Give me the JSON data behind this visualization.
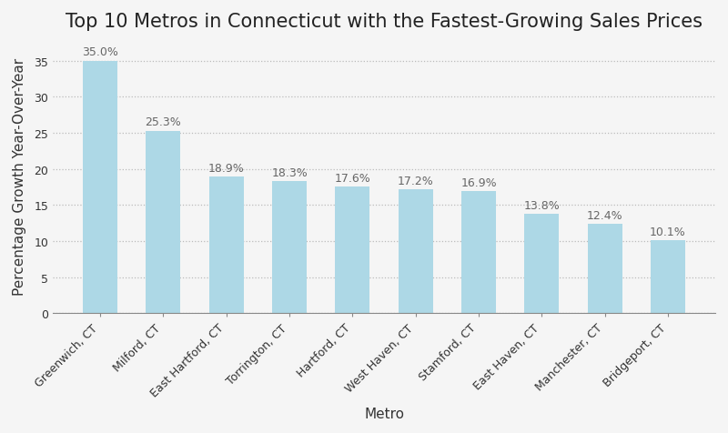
{
  "title": "Top 10 Metros in Connecticut with the Fastest-Growing Sales Prices",
  "xlabel": "Metro",
  "ylabel": "Percentage Growth Year-Over-Year",
  "categories": [
    "Greenwich, CT",
    "Milford, CT",
    "East Hartford, CT",
    "Torrington, CT",
    "Hartford, CT",
    "West Haven, CT",
    "Stamford, CT",
    "East Haven, CT",
    "Manchester, CT",
    "Bridgeport, CT"
  ],
  "values": [
    35.0,
    25.3,
    18.9,
    18.3,
    17.6,
    17.2,
    16.9,
    13.8,
    12.4,
    10.1
  ],
  "bar_color": "#add8e6",
  "bar_edge_color": "none",
  "background_color": "#f5f5f5",
  "grid_color": "#bbbbbb",
  "label_color": "#666666",
  "ylim": [
    0,
    38
  ],
  "yticks": [
    0,
    5,
    10,
    15,
    20,
    25,
    30,
    35
  ],
  "title_fontsize": 15,
  "axis_label_fontsize": 11,
  "tick_label_fontsize": 9,
  "bar_label_fontsize": 9,
  "bar_width": 0.55
}
